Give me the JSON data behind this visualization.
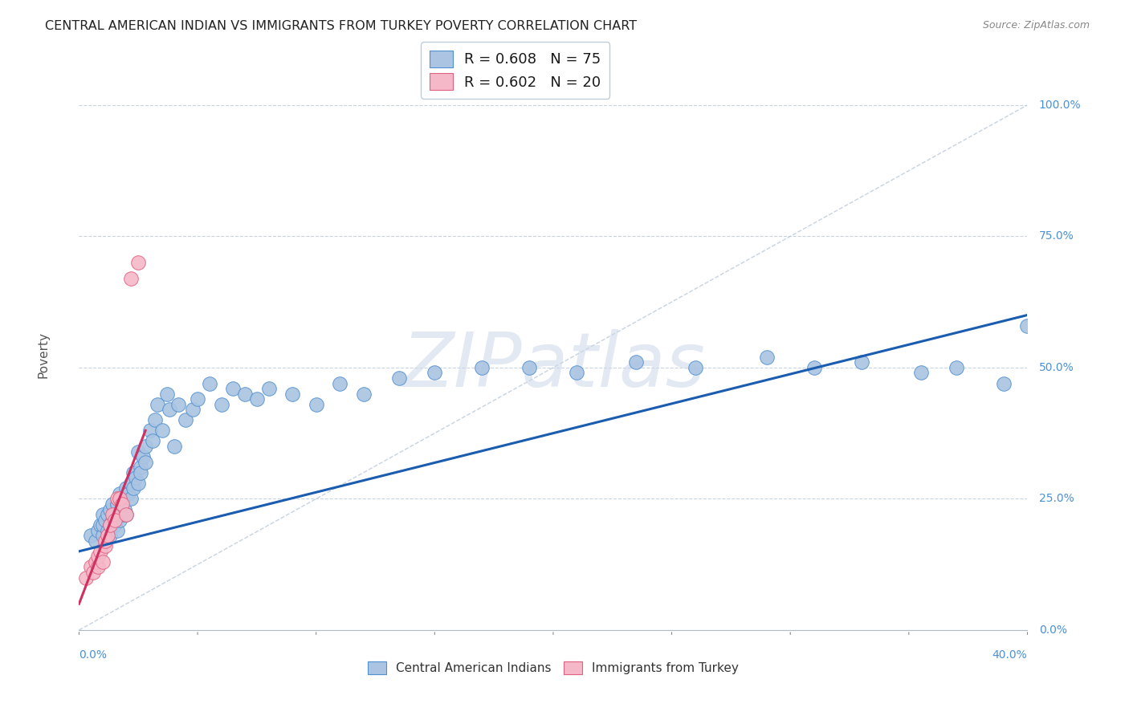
{
  "title": "CENTRAL AMERICAN INDIAN VS IMMIGRANTS FROM TURKEY POVERTY CORRELATION CHART",
  "source": "Source: ZipAtlas.com",
  "ylabel": "Poverty",
  "yticks": [
    "0.0%",
    "25.0%",
    "50.0%",
    "75.0%",
    "100.0%"
  ],
  "ytick_vals": [
    0.0,
    0.25,
    0.5,
    0.75,
    1.0
  ],
  "xticks": [
    "0.0%",
    "40.0%"
  ],
  "xlim": [
    0.0,
    0.4
  ],
  "ylim": [
    0.0,
    1.05
  ],
  "color_blue": "#aac4e2",
  "color_pink": "#f5b8c8",
  "color_blue_edge": "#5090d0",
  "color_pink_edge": "#e06080",
  "color_line_blue": "#1a5cb0",
  "color_line_pink": "#d03060",
  "color_diag": "#b8c8d8",
  "watermark_text": "ZIPatlas",
  "legend1_label": "R = 0.608   N = 75",
  "legend2_label": "R = 0.602   N = 20",
  "bottom_legend1": "Central American Indians",
  "bottom_legend2": "Immigrants from Turkey",
  "scatter_blue_x": [
    0.005,
    0.007,
    0.008,
    0.009,
    0.01,
    0.01,
    0.01,
    0.011,
    0.012,
    0.012,
    0.013,
    0.013,
    0.013,
    0.014,
    0.014,
    0.015,
    0.015,
    0.016,
    0.016,
    0.017,
    0.017,
    0.018,
    0.018,
    0.019,
    0.02,
    0.02,
    0.021,
    0.022,
    0.022,
    0.023,
    0.023,
    0.024,
    0.025,
    0.025,
    0.026,
    0.026,
    0.027,
    0.028,
    0.028,
    0.03,
    0.031,
    0.032,
    0.033,
    0.035,
    0.037,
    0.038,
    0.04,
    0.042,
    0.045,
    0.048,
    0.05,
    0.055,
    0.06,
    0.065,
    0.07,
    0.075,
    0.08,
    0.09,
    0.1,
    0.11,
    0.12,
    0.135,
    0.15,
    0.17,
    0.19,
    0.21,
    0.235,
    0.26,
    0.29,
    0.31,
    0.33,
    0.355,
    0.37,
    0.39,
    0.4
  ],
  "scatter_blue_y": [
    0.18,
    0.17,
    0.19,
    0.2,
    0.18,
    0.2,
    0.22,
    0.21,
    0.19,
    0.22,
    0.18,
    0.2,
    0.23,
    0.21,
    0.24,
    0.2,
    0.22,
    0.19,
    0.24,
    0.21,
    0.26,
    0.22,
    0.25,
    0.23,
    0.22,
    0.27,
    0.26,
    0.28,
    0.25,
    0.27,
    0.3,
    0.29,
    0.34,
    0.28,
    0.31,
    0.3,
    0.33,
    0.35,
    0.32,
    0.38,
    0.36,
    0.4,
    0.43,
    0.38,
    0.45,
    0.42,
    0.35,
    0.43,
    0.4,
    0.42,
    0.44,
    0.47,
    0.43,
    0.46,
    0.45,
    0.44,
    0.46,
    0.45,
    0.43,
    0.47,
    0.45,
    0.48,
    0.49,
    0.5,
    0.5,
    0.49,
    0.51,
    0.5,
    0.52,
    0.5,
    0.51,
    0.49,
    0.5,
    0.47,
    0.58
  ],
  "scatter_pink_x": [
    0.003,
    0.005,
    0.006,
    0.007,
    0.008,
    0.008,
    0.009,
    0.01,
    0.011,
    0.011,
    0.012,
    0.013,
    0.014,
    0.015,
    0.016,
    0.017,
    0.018,
    0.02,
    0.022,
    0.025
  ],
  "scatter_pink_y": [
    0.1,
    0.12,
    0.11,
    0.13,
    0.12,
    0.14,
    0.15,
    0.13,
    0.16,
    0.17,
    0.18,
    0.2,
    0.22,
    0.21,
    0.25,
    0.25,
    0.24,
    0.22,
    0.67,
    0.7
  ],
  "blue_line_x": [
    0.0,
    0.4
  ],
  "blue_line_y": [
    0.15,
    0.6
  ],
  "pink_line_x": [
    0.0,
    0.028
  ],
  "pink_line_y": [
    0.05,
    0.38
  ],
  "diag_line_x": [
    0.0,
    0.4
  ],
  "diag_line_y": [
    0.0,
    1.0
  ]
}
